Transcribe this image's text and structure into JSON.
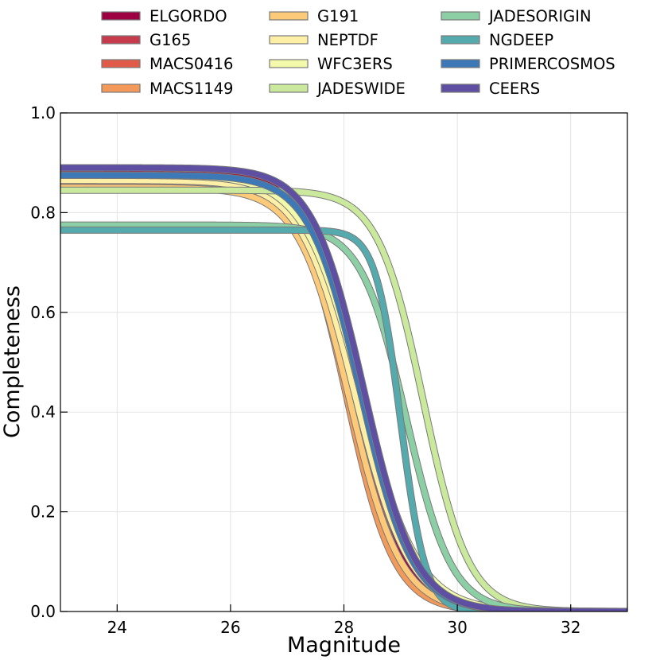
{
  "chart_data": {
    "type": "line",
    "title": "",
    "xlabel": "Magnitude",
    "ylabel": "Completeness",
    "xlim": [
      23,
      33
    ],
    "ylim": [
      0.0,
      1.0
    ],
    "grid": true,
    "legend_position": "top",
    "legend_columns": 3,
    "x_ticks": [
      24,
      26,
      28,
      30,
      32
    ],
    "x_tick_labels": [
      "24",
      "26",
      "28",
      "30",
      "32"
    ],
    "y_ticks": [
      0.0,
      0.2,
      0.4,
      0.6,
      0.8,
      1.0
    ],
    "y_tick_labels": [
      "0.0",
      "0.2",
      "0.4",
      "0.6",
      "0.8",
      "1.0"
    ],
    "curve_model": "logistic: completeness = plateau / (1 + exp((magnitude - m50) / width))",
    "series": [
      {
        "name": "ELGORDO",
        "color": "#9e0142",
        "plateau": 0.88,
        "m50": 28.25,
        "width": 0.42
      },
      {
        "name": "G165",
        "color": "#c73c4c",
        "plateau": 0.86,
        "m50": 28.15,
        "width": 0.42
      },
      {
        "name": "MACS0416",
        "color": "#e05c48",
        "plateau": 0.855,
        "m50": 28.1,
        "width": 0.42
      },
      {
        "name": "MACS1149",
        "color": "#f3995a",
        "plateau": 0.86,
        "m50": 28.05,
        "width": 0.42
      },
      {
        "name": "G191",
        "color": "#fdca79",
        "plateau": 0.85,
        "m50": 28.1,
        "width": 0.45
      },
      {
        "name": "NEPTDF",
        "color": "#fdf0a6",
        "plateau": 0.865,
        "m50": 28.2,
        "width": 0.48
      },
      {
        "name": "WFC3ERS",
        "color": "#f2f9ab",
        "plateau": 0.875,
        "m50": 28.3,
        "width": 0.5
      },
      {
        "name": "JADESWIDE",
        "color": "#cbe99d",
        "plateau": 0.845,
        "m50": 29.4,
        "width": 0.4
      },
      {
        "name": "JADESORIGIN",
        "color": "#8ccfa4",
        "plateau": 0.775,
        "m50": 29.1,
        "width": 0.4
      },
      {
        "name": "NGDEEP",
        "color": "#55aaae",
        "plateau": 0.765,
        "m50": 29.0,
        "width": 0.22
      },
      {
        "name": "PRIMERCOSMOS",
        "color": "#3d79b6",
        "plateau": 0.875,
        "m50": 28.3,
        "width": 0.45
      },
      {
        "name": "CEERS",
        "color": "#5e4fa2",
        "plateau": 0.89,
        "m50": 28.35,
        "width": 0.45
      }
    ]
  }
}
